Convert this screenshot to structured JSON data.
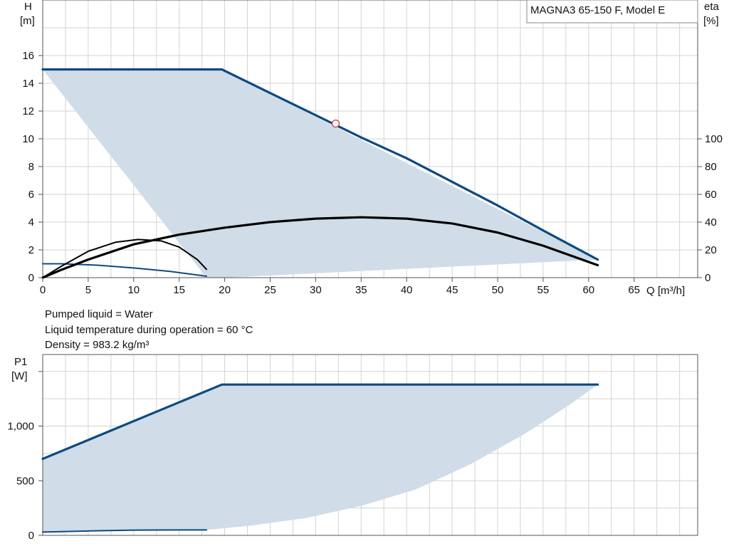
{
  "chart_data": [
    {
      "type": "line",
      "title": "MAGNA3 65-150 F, Model E",
      "xlabel": "Q [m³/h]",
      "ylabel_line1": "H",
      "ylabel_line2": "[m]",
      "y2label_line1": "eta",
      "y2label_line2": "[%]",
      "xlim": [
        0,
        72
      ],
      "ylim": [
        0,
        16
      ],
      "y2lim": [
        0,
        100
      ],
      "xticks": [
        "0",
        "5",
        "10",
        "15",
        "20",
        "25",
        "30",
        "35",
        "40",
        "45",
        "50",
        "55",
        "60",
        "65"
      ],
      "yticks": [
        "0",
        "2",
        "4",
        "6",
        "8",
        "10",
        "12",
        "14",
        "16"
      ],
      "y2ticks": [
        "0",
        "20",
        "40",
        "60",
        "80",
        "100"
      ],
      "grid": true,
      "area": {
        "name": "operating range",
        "x": [
          0,
          19.7,
          61,
          61,
          20,
          18
        ],
        "y": [
          15,
          15,
          1.3,
          1.3,
          0,
          0
        ],
        "color": "#d0dce7"
      },
      "series": [
        {
          "axis": "left",
          "width": 3.2,
          "color": "#0b4a82",
          "x": [
            0,
            19.7,
            20,
            25,
            30,
            35,
            40,
            45,
            50,
            55,
            61
          ],
          "y": [
            15,
            15,
            14.9,
            13.3,
            11.7,
            10.1,
            8.6,
            6.9,
            5.2,
            3.4,
            1.3
          ]
        },
        {
          "axis": "left",
          "width": 2.0,
          "color": "#0b4a82",
          "x": [
            0,
            2,
            6,
            10,
            14,
            18
          ],
          "y": [
            1.0,
            1.0,
            0.9,
            0.7,
            0.45,
            0.1
          ]
        },
        {
          "axis": "right",
          "width": 3.2,
          "color": "#000000",
          "x": [
            0,
            2,
            5,
            10,
            15,
            20,
            25,
            30,
            35,
            40,
            45,
            50,
            55,
            61
          ],
          "y": [
            0,
            5.5,
            13,
            24,
            31,
            36,
            40,
            42.5,
            43.5,
            42.5,
            39,
            32.5,
            23,
            9
          ]
        },
        {
          "axis": "right",
          "width": 2.0,
          "color": "#000000",
          "x": [
            0,
            2,
            5,
            8,
            10.5,
            13,
            15,
            17,
            18
          ],
          "y": [
            0,
            8,
            19,
            25.5,
            27.5,
            26.5,
            22,
            13,
            6
          ]
        }
      ],
      "duty_point": {
        "x": 32.2,
        "y": 11.1
      },
      "x_label_ticks_at": [
        0,
        5,
        10,
        15,
        20,
        25,
        30,
        35,
        40,
        45,
        50,
        55,
        60,
        65
      ]
    },
    {
      "type": "line",
      "ylabel_line1": "P1",
      "ylabel_line2": "[W]",
      "xlim": [
        0,
        72
      ],
      "ylim": [
        0,
        1500
      ],
      "yticks": [
        "0",
        "500",
        "1,000"
      ],
      "ytick_values": [
        0,
        500,
        1000
      ],
      "grid": true,
      "area": {
        "name": "power range",
        "x": [
          0,
          19.7,
          61,
          61,
          58,
          53,
          47,
          41,
          35,
          29,
          23,
          18,
          0
        ],
        "y": [
          700,
          1380,
          1380,
          1380,
          1200,
          930,
          650,
          420,
          270,
          160,
          90,
          50,
          30
        ],
        "color": "#d0dce7"
      },
      "series": [
        {
          "width": 3.2,
          "color": "#0b4a82",
          "x": [
            0,
            19.7,
            61
          ],
          "y": [
            700,
            1380,
            1380
          ]
        },
        {
          "width": 2.0,
          "color": "#0b4a82",
          "x": [
            0,
            5,
            10,
            18
          ],
          "y": [
            30,
            40,
            48,
            50
          ]
        }
      ]
    }
  ],
  "info": {
    "line1": "Pumped liquid = Water",
    "line2": "Liquid temperature during operation = 60 °C",
    "line3": "Density = 983.2 kg/m³"
  }
}
